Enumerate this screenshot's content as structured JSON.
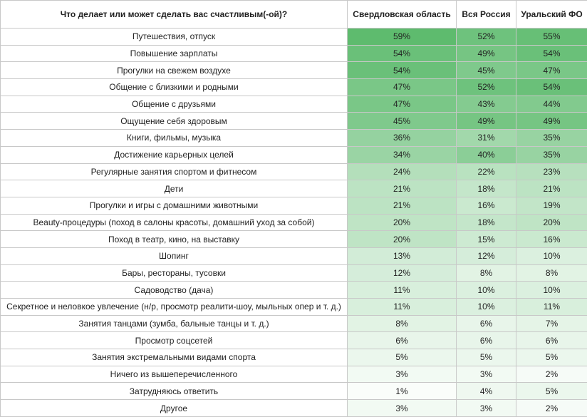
{
  "colors": {
    "scale_low": "#ffffff",
    "scale_high": "#5ebb6e"
  },
  "table": {
    "headers": [
      "Что делает или может сделать вас счастливым(-ой)?",
      "Свердловская область",
      "Вся Россия",
      "Уральский ФО"
    ],
    "rows": [
      {
        "label": "Путешествия, отпуск",
        "values": [
          "59%",
          "52%",
          "55%"
        ]
      },
      {
        "label": "Повышение зарплаты",
        "values": [
          "54%",
          "49%",
          "54%"
        ]
      },
      {
        "label": "Прогулки на свежем воздухе",
        "values": [
          "54%",
          "45%",
          "47%"
        ]
      },
      {
        "label": "Общение с близкими и родными",
        "values": [
          "47%",
          "52%",
          "54%"
        ]
      },
      {
        "label": "Общение с друзьями",
        "values": [
          "47%",
          "43%",
          "44%"
        ]
      },
      {
        "label": "Ощущение себя здоровым",
        "values": [
          "45%",
          "49%",
          "49%"
        ]
      },
      {
        "label": "Книги, фильмы, музыка",
        "values": [
          "36%",
          "31%",
          "35%"
        ]
      },
      {
        "label": "Достижение карьерных целей",
        "values": [
          "34%",
          "40%",
          "35%"
        ]
      },
      {
        "label": "Регулярные занятия спортом и фитнесом",
        "values": [
          "24%",
          "22%",
          "23%"
        ]
      },
      {
        "label": "Дети",
        "values": [
          "21%",
          "18%",
          "21%"
        ]
      },
      {
        "label": "Прогулки и игры с домашними животными",
        "values": [
          "21%",
          "16%",
          "19%"
        ]
      },
      {
        "label": "Beauty-процедуры (поход в салоны красоты, домашний уход за собой)",
        "values": [
          "20%",
          "18%",
          "20%"
        ]
      },
      {
        "label": "Поход в театр, кино, на выставку",
        "values": [
          "20%",
          "15%",
          "16%"
        ]
      },
      {
        "label": "Шопинг",
        "values": [
          "13%",
          "12%",
          "10%"
        ]
      },
      {
        "label": "Бары, рестораны, тусовки",
        "values": [
          "12%",
          "8%",
          "8%"
        ]
      },
      {
        "label": "Садоводство (дача)",
        "values": [
          "11%",
          "10%",
          "10%"
        ]
      },
      {
        "label": "Секретное и неловкое увлечение (н/р, просмотр реалити-шоу, мыльных опер и т. д.)",
        "values": [
          "11%",
          "10%",
          "11%"
        ]
      },
      {
        "label": "Занятия танцами (зумба, бальные танцы и т. д.)",
        "values": [
          "8%",
          "6%",
          "7%"
        ]
      },
      {
        "label": "Просмотр соцсетей",
        "values": [
          "6%",
          "6%",
          "6%"
        ]
      },
      {
        "label": "Занятия экстремальными видами спорта",
        "values": [
          "5%",
          "5%",
          "5%"
        ]
      },
      {
        "label": "Ничего из вышеперечисленного",
        "values": [
          "3%",
          "3%",
          "2%"
        ]
      },
      {
        "label": "Затрудняюсь ответить",
        "values": [
          "1%",
          "4%",
          "5%"
        ]
      },
      {
        "label": "Другое",
        "values": [
          "3%",
          "3%",
          "2%"
        ]
      }
    ]
  }
}
